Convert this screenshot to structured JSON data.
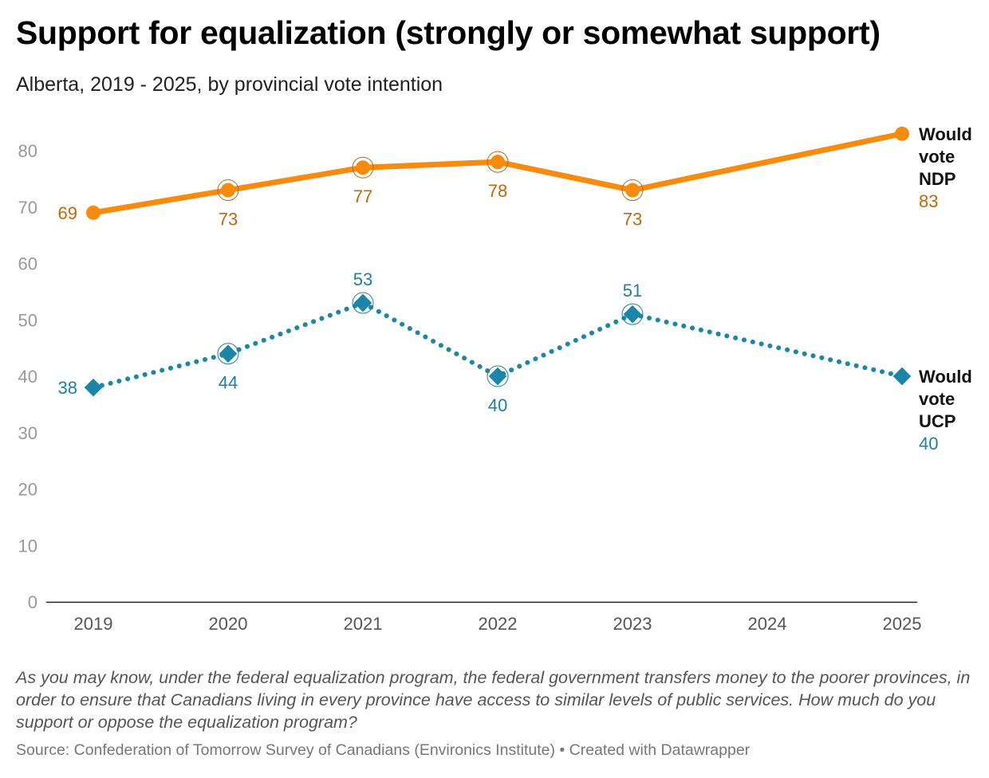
{
  "chart_data": {
    "type": "line",
    "title": "Support for equalization (strongly or somewhat support)",
    "subtitle": "Alberta, 2019 - 2025, by provincial vote intention",
    "x": [
      2019,
      2020,
      2021,
      2022,
      2023,
      2024,
      2025
    ],
    "x_tick_labels": [
      "2019",
      "2020",
      "2021",
      "2022",
      "2023",
      "2024",
      "2025"
    ],
    "y_ticks": [
      0,
      10,
      20,
      30,
      40,
      50,
      60,
      70,
      80
    ],
    "y_tick_labels": [
      "0",
      "10",
      "20",
      "30",
      "40",
      "50",
      "60",
      "70",
      "80"
    ],
    "ylim": [
      0,
      80
    ],
    "series": [
      {
        "name": "Would vote NDP",
        "name_lines": [
          "Would",
          "vote",
          "NDP"
        ],
        "color": "#f68b0f",
        "label_color": "#c0670f",
        "marker": "circle",
        "style": "solid",
        "points": [
          {
            "x": 2019,
            "y": 69,
            "label": "69",
            "pos": "left"
          },
          {
            "x": 2020,
            "y": 73,
            "label": "73",
            "pos": "below"
          },
          {
            "x": 2021,
            "y": 77,
            "label": "77",
            "pos": "below"
          },
          {
            "x": 2022,
            "y": 78,
            "label": "78",
            "pos": "below"
          },
          {
            "x": 2023,
            "y": 73,
            "label": "73",
            "pos": "below"
          },
          {
            "x": 2025,
            "y": 83,
            "label": "83",
            "pos": "end"
          }
        ]
      },
      {
        "name": "Would vote UCP",
        "name_lines": [
          "Would",
          "vote",
          "UCP"
        ],
        "color": "#1d86a8",
        "label_color": "#1f7fa0",
        "marker": "diamond",
        "style": "dotted",
        "points": [
          {
            "x": 2019,
            "y": 38,
            "label": "38",
            "pos": "left"
          },
          {
            "x": 2020,
            "y": 44,
            "label": "44",
            "pos": "below"
          },
          {
            "x": 2021,
            "y": 53,
            "label": "53",
            "pos": "above"
          },
          {
            "x": 2022,
            "y": 40,
            "label": "40",
            "pos": "below"
          },
          {
            "x": 2023,
            "y": 51,
            "label": "51",
            "pos": "above"
          },
          {
            "x": 2025,
            "y": 40,
            "label": "40",
            "pos": "end"
          }
        ]
      }
    ]
  },
  "note": "As you may know, under the federal equalization program, the federal government transfers money to the poorer provinces, in order to ensure that Canadians living in every province have access to similar levels of public services. How much do you support or oppose the equalization program?",
  "source": "Source: Confederation of Tomorrow Survey of Canadians (Environics Institute) • Created with Datawrapper"
}
